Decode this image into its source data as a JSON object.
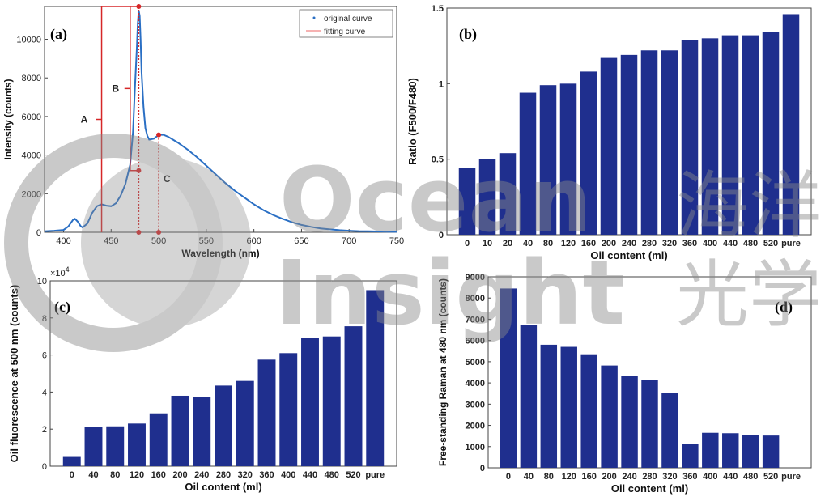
{
  "watermark": {
    "line1": "Ocean",
    "line2": "Insight",
    "cn1": "海洋",
    "cn2": "光学",
    "color": "#8a8a8a"
  },
  "colors": {
    "bar": "#1f2f8e",
    "curve": "#2a6fc4",
    "annotation": "#d62728"
  },
  "chart_data": [
    {
      "panel_label": "(a)",
      "type": "line",
      "xlabel": "Wavelength (nm)",
      "ylabel": "Intensity (counts)",
      "xlim": [
        380,
        750
      ],
      "ylim": [
        0,
        11700
      ],
      "xticks": [
        400,
        450,
        500,
        550,
        600,
        650,
        700,
        750
      ],
      "yticks": [
        0,
        2000,
        4000,
        6000,
        8000,
        10000
      ],
      "legend": [
        "original curve",
        "fitting curve"
      ],
      "legend_position": "top-right",
      "annotations": [
        "A",
        "B",
        "C"
      ],
      "series": [
        {
          "name": "original curve",
          "x": [
            380,
            390,
            400,
            405,
            410,
            412,
            415,
            418,
            420,
            425,
            430,
            435,
            440,
            445,
            450,
            455,
            460,
            465,
            470,
            473,
            475,
            477,
            478,
            479,
            480,
            481,
            482,
            484,
            486,
            488,
            490,
            495,
            500,
            505,
            510,
            520,
            530,
            540,
            550,
            560,
            570,
            580,
            590,
            600,
            610,
            620,
            630,
            640,
            650,
            660,
            670,
            680,
            690,
            700,
            710,
            720,
            730,
            740,
            750
          ],
          "y": [
            50,
            80,
            120,
            300,
            650,
            700,
            550,
            320,
            250,
            450,
            1000,
            1350,
            1450,
            1380,
            1350,
            1500,
            1900,
            2500,
            3500,
            5200,
            7500,
            9500,
            10800,
            11500,
            11200,
            10000,
            8300,
            6500,
            5400,
            5000,
            4800,
            4850,
            5050,
            5050,
            4950,
            4650,
            4300,
            3900,
            3450,
            3000,
            2550,
            2150,
            1800,
            1450,
            1150,
            900,
            700,
            520,
            380,
            280,
            200,
            150,
            110,
            80,
            60,
            50,
            40,
            30,
            25
          ]
        }
      ]
    },
    {
      "panel_label": "(b)",
      "type": "bar",
      "xlabel": "Oil content (ml)",
      "ylabel": "Ratio (F500/F480)",
      "ylim": [
        0,
        1.5
      ],
      "yticks": [
        0,
        0.5,
        1,
        1.5
      ],
      "categories": [
        "0",
        "10",
        "20",
        "40",
        "80",
        "120",
        "160",
        "200",
        "240",
        "280",
        "320",
        "360",
        "400",
        "440",
        "480",
        "520",
        "pure"
      ],
      "values": [
        0.44,
        0.5,
        0.54,
        0.94,
        0.99,
        1.0,
        1.08,
        1.17,
        1.19,
        1.22,
        1.22,
        1.29,
        1.3,
        1.32,
        1.32,
        1.34,
        1.46
      ]
    },
    {
      "panel_label": "(c)",
      "type": "bar",
      "xlabel": "Oil content (ml)",
      "ylabel": "Oil fluorescence at 500 nm (counts)",
      "exponent_label": "×10",
      "exponent_power": "4",
      "ylim": [
        0,
        10
      ],
      "yticks": [
        0,
        2,
        4,
        6,
        8,
        10
      ],
      "categories": [
        "0",
        "40",
        "80",
        "120",
        "160",
        "200",
        "240",
        "280",
        "320",
        "360",
        "400",
        "440",
        "480",
        "520",
        "pure"
      ],
      "values": [
        0.5,
        2.1,
        2.15,
        2.3,
        2.85,
        3.8,
        3.75,
        4.35,
        4.6,
        5.75,
        6.1,
        6.9,
        7.0,
        7.55,
        9.5
      ]
    },
    {
      "panel_label": "(d)",
      "type": "bar",
      "xlabel": "Oil content (ml)",
      "ylabel": "Free-standing Raman at 480 nm (counts)",
      "ylim": [
        0,
        9000
      ],
      "yticks": [
        0,
        1000,
        2000,
        3000,
        4000,
        5000,
        6000,
        7000,
        8000,
        9000
      ],
      "categories": [
        "0",
        "40",
        "80",
        "120",
        "160",
        "200",
        "240",
        "280",
        "320",
        "360",
        "400",
        "440",
        "480",
        "520",
        "pure"
      ],
      "values": [
        8450,
        6750,
        5800,
        5700,
        5350,
        4820,
        4330,
        4150,
        3520,
        1120,
        1650,
        1630,
        1550,
        1520,
        0
      ]
    }
  ]
}
